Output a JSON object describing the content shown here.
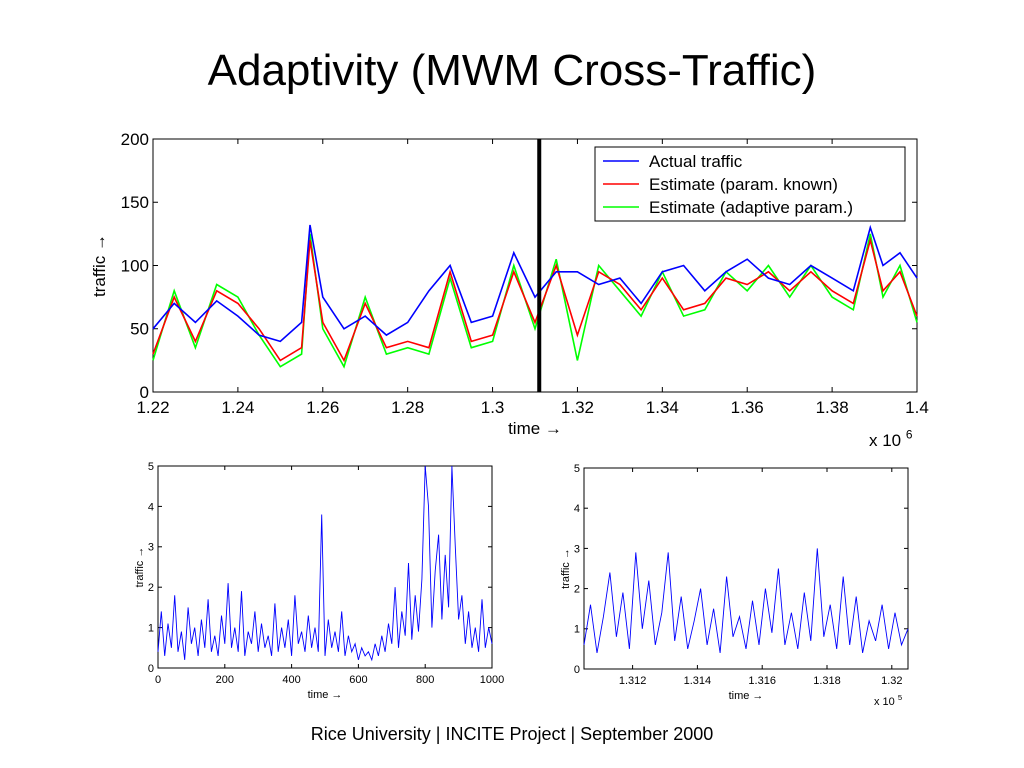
{
  "slide": {
    "title": "Adaptivity (MWM Cross-Traffic)",
    "footer": "Rice University | INCITE Project | September 2000"
  },
  "chart_data": [
    {
      "type": "line",
      "xlabel": "time →",
      "ylabel": "traffic →",
      "x_multiplier_label": "x 10",
      "x_multiplier_exp": "6",
      "xlim": [
        1.22,
        1.4
      ],
      "ylim": [
        0,
        200
      ],
      "xticks": [
        1.22,
        1.24,
        1.26,
        1.28,
        1.3,
        1.32,
        1.34,
        1.36,
        1.38,
        1.4
      ],
      "xtick_labels": [
        "1.22",
        "1.24",
        "1.26",
        "1.28",
        "1.3",
        "1.32",
        "1.34",
        "1.36",
        "1.38",
        "1.4"
      ],
      "yticks": [
        0,
        50,
        100,
        150,
        200
      ],
      "ytick_labels": [
        "0",
        "50",
        "100",
        "150",
        "200"
      ],
      "vertical_marker_x": 1.311,
      "legend_position": "top-right",
      "grid": false,
      "colors": {
        "actual": "#0000ff",
        "known": "#ff0000",
        "adaptive": "#00ff00",
        "marker": "#000000"
      },
      "series": [
        {
          "name": "Actual traffic",
          "x": [
            1.22,
            1.225,
            1.23,
            1.235,
            1.24,
            1.245,
            1.25,
            1.255,
            1.257,
            1.26,
            1.265,
            1.27,
            1.275,
            1.28,
            1.285,
            1.29,
            1.295,
            1.3,
            1.305,
            1.31,
            1.315,
            1.32,
            1.325,
            1.33,
            1.335,
            1.34,
            1.345,
            1.35,
            1.355,
            1.36,
            1.365,
            1.37,
            1.375,
            1.38,
            1.385,
            1.389,
            1.392,
            1.396,
            1.4
          ],
          "y": [
            50,
            70,
            55,
            72,
            60,
            45,
            40,
            55,
            132,
            75,
            50,
            60,
            45,
            55,
            80,
            100,
            55,
            60,
            110,
            75,
            95,
            95,
            85,
            90,
            70,
            95,
            100,
            80,
            95,
            105,
            90,
            85,
            100,
            90,
            80,
            130,
            100,
            110,
            90
          ]
        },
        {
          "name": "Estimate (param. known)",
          "x": [
            1.22,
            1.225,
            1.23,
            1.235,
            1.24,
            1.245,
            1.25,
            1.255,
            1.257,
            1.26,
            1.265,
            1.27,
            1.275,
            1.28,
            1.285,
            1.29,
            1.295,
            1.3,
            1.305,
            1.31,
            1.315,
            1.32,
            1.325,
            1.33,
            1.335,
            1.34,
            1.345,
            1.35,
            1.355,
            1.36,
            1.365,
            1.37,
            1.375,
            1.38,
            1.385,
            1.389,
            1.392,
            1.396,
            1.4
          ],
          "y": [
            30,
            75,
            40,
            80,
            70,
            50,
            25,
            35,
            120,
            55,
            25,
            70,
            35,
            40,
            35,
            95,
            40,
            45,
            95,
            55,
            100,
            45,
            95,
            85,
            65,
            90,
            65,
            70,
            90,
            85,
            95,
            80,
            95,
            80,
            70,
            120,
            80,
            95,
            60
          ]
        },
        {
          "name": "Estimate (adaptive param.)",
          "x": [
            1.22,
            1.225,
            1.23,
            1.235,
            1.24,
            1.245,
            1.25,
            1.255,
            1.257,
            1.26,
            1.265,
            1.27,
            1.275,
            1.28,
            1.285,
            1.29,
            1.295,
            1.3,
            1.305,
            1.31,
            1.315,
            1.32,
            1.325,
            1.33,
            1.335,
            1.34,
            1.345,
            1.35,
            1.355,
            1.36,
            1.365,
            1.37,
            1.375,
            1.38,
            1.385,
            1.389,
            1.392,
            1.396,
            1.4
          ],
          "y": [
            25,
            80,
            35,
            85,
            75,
            45,
            20,
            30,
            125,
            50,
            20,
            75,
            30,
            35,
            30,
            90,
            35,
            40,
            100,
            50,
            105,
            25,
            100,
            80,
            60,
            95,
            60,
            65,
            95,
            80,
            100,
            75,
            100,
            75,
            65,
            125,
            75,
            100,
            55
          ]
        }
      ]
    },
    {
      "type": "line",
      "xlabel": "time →",
      "ylabel": "traffic →",
      "xlim": [
        0,
        1000
      ],
      "ylim": [
        0,
        5
      ],
      "xticks": [
        0,
        200,
        400,
        600,
        800,
        1000
      ],
      "xtick_labels": [
        "0",
        "200",
        "400",
        "600",
        "800",
        "1000"
      ],
      "yticks": [
        0,
        1,
        2,
        3,
        4,
        5
      ],
      "ytick_labels": [
        "0",
        "1",
        "2",
        "3",
        "4",
        "5"
      ],
      "grid": false,
      "colors": {
        "line": "#0000ff"
      },
      "series": [
        {
          "x": [
            0,
            10,
            20,
            30,
            40,
            50,
            60,
            70,
            80,
            90,
            100,
            110,
            120,
            130,
            140,
            150,
            160,
            170,
            180,
            190,
            200,
            210,
            220,
            230,
            240,
            250,
            260,
            270,
            280,
            290,
            300,
            310,
            320,
            330,
            340,
            350,
            360,
            370,
            380,
            390,
            400,
            410,
            420,
            430,
            440,
            450,
            460,
            470,
            480,
            490,
            500,
            510,
            520,
            530,
            540,
            550,
            560,
            570,
            580,
            590,
            600,
            610,
            620,
            630,
            640,
            650,
            660,
            670,
            680,
            690,
            700,
            710,
            720,
            730,
            740,
            750,
            760,
            770,
            780,
            790,
            800,
            810,
            820,
            830,
            840,
            850,
            860,
            870,
            880,
            890,
            900,
            910,
            920,
            930,
            940,
            950,
            960,
            970,
            980,
            990,
            1000
          ],
          "y": [
            0.4,
            1.4,
            0.3,
            1.1,
            0.5,
            1.8,
            0.4,
            0.9,
            0.2,
            1.5,
            0.6,
            1.0,
            0.3,
            1.2,
            0.5,
            1.7,
            0.4,
            0.8,
            0.3,
            1.3,
            0.6,
            2.1,
            0.5,
            1.0,
            0.4,
            1.9,
            0.3,
            0.9,
            0.6,
            1.4,
            0.4,
            1.1,
            0.5,
            0.8,
            0.3,
            1.6,
            0.4,
            1.0,
            0.5,
            1.2,
            0.3,
            1.8,
            0.6,
            0.9,
            0.4,
            1.3,
            0.5,
            1.0,
            0.4,
            3.8,
            0.3,
            1.2,
            0.5,
            0.9,
            0.4,
            1.4,
            0.3,
            0.8,
            0.4,
            0.6,
            0.2,
            0.5,
            0.3,
            0.4,
            0.2,
            0.6,
            0.3,
            0.8,
            0.4,
            1.1,
            0.6,
            2.0,
            0.5,
            1.4,
            0.8,
            2.6,
            0.7,
            1.8,
            0.9,
            2.2,
            5.0,
            4.0,
            1.0,
            2.4,
            3.3,
            1.2,
            2.8,
            1.5,
            5.0,
            3.0,
            1.2,
            1.8,
            0.6,
            1.4,
            0.5,
            1.0,
            0.4,
            1.7,
            0.5,
            1.0,
            0.6
          ]
        }
      ]
    },
    {
      "type": "line",
      "xlabel": "time →",
      "ylabel": "traffic →",
      "x_multiplier_label": "x 10",
      "x_multiplier_exp": "5",
      "xlim": [
        1.3105,
        1.3205
      ],
      "ylim": [
        0,
        5
      ],
      "xticks": [
        1.312,
        1.314,
        1.316,
        1.318,
        1.32
      ],
      "xtick_labels": [
        "1.312",
        "1.314",
        "1.316",
        "1.318",
        "1.32"
      ],
      "yticks": [
        0,
        1,
        2,
        3,
        4,
        5
      ],
      "ytick_labels": [
        "0",
        "1",
        "2",
        "3",
        "4",
        "5"
      ],
      "grid": false,
      "colors": {
        "line": "#0000ff"
      },
      "series": [
        {
          "x": [
            1.3105,
            1.3107,
            1.3109,
            1.3111,
            1.3113,
            1.3115,
            1.3117,
            1.3119,
            1.3121,
            1.3123,
            1.3125,
            1.3127,
            1.3129,
            1.3131,
            1.3133,
            1.3135,
            1.3137,
            1.3139,
            1.3141,
            1.3143,
            1.3145,
            1.3147,
            1.3149,
            1.3151,
            1.3153,
            1.3155,
            1.3157,
            1.3159,
            1.3161,
            1.3163,
            1.3165,
            1.3167,
            1.3169,
            1.3171,
            1.3173,
            1.3175,
            1.3177,
            1.3179,
            1.3181,
            1.3183,
            1.3185,
            1.3187,
            1.3189,
            1.3191,
            1.3193,
            1.3195,
            1.3197,
            1.3199,
            1.3201,
            1.3203,
            1.3205
          ],
          "y": [
            0.6,
            1.6,
            0.4,
            1.3,
            2.4,
            0.8,
            1.9,
            0.5,
            2.9,
            1.0,
            2.2,
            0.6,
            1.4,
            2.9,
            0.7,
            1.8,
            0.5,
            1.2,
            2.0,
            0.6,
            1.5,
            0.4,
            2.3,
            0.8,
            1.3,
            0.5,
            1.7,
            0.6,
            2.0,
            0.9,
            2.5,
            0.6,
            1.4,
            0.5,
            1.9,
            0.7,
            3.0,
            0.8,
            1.6,
            0.5,
            2.3,
            0.6,
            1.8,
            0.4,
            1.2,
            0.7,
            1.6,
            0.5,
            1.4,
            0.6,
            1.0
          ]
        }
      ]
    }
  ]
}
